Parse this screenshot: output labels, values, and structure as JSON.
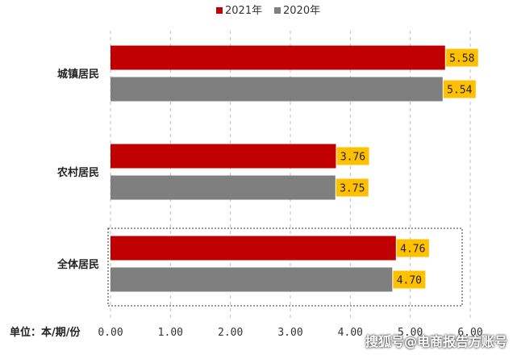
{
  "chart_data": {
    "type": "bar",
    "orientation": "horizontal",
    "categories": [
      "城镇居民",
      "农村居民",
      "全体居民"
    ],
    "series": [
      {
        "name": "2021年",
        "values": [
          5.58,
          3.76,
          4.76
        ],
        "color": "#c00000"
      },
      {
        "name": "2020年",
        "values": [
          5.54,
          3.75,
          4.7
        ],
        "color": "#7f7f7f"
      }
    ],
    "x_ticks": [
      "0.00",
      "1.00",
      "2.00",
      "3.00",
      "4.00",
      "5.00",
      "6.00"
    ],
    "xlim": [
      0,
      6
    ],
    "unit_label": "单位：本/期/份",
    "legend_position": "top-center",
    "grid": "vertical-dashed",
    "data_label_bg": "#ffc000",
    "highlight_category": "全体居民"
  },
  "watermark": "搜狐号@电商报告方账号"
}
